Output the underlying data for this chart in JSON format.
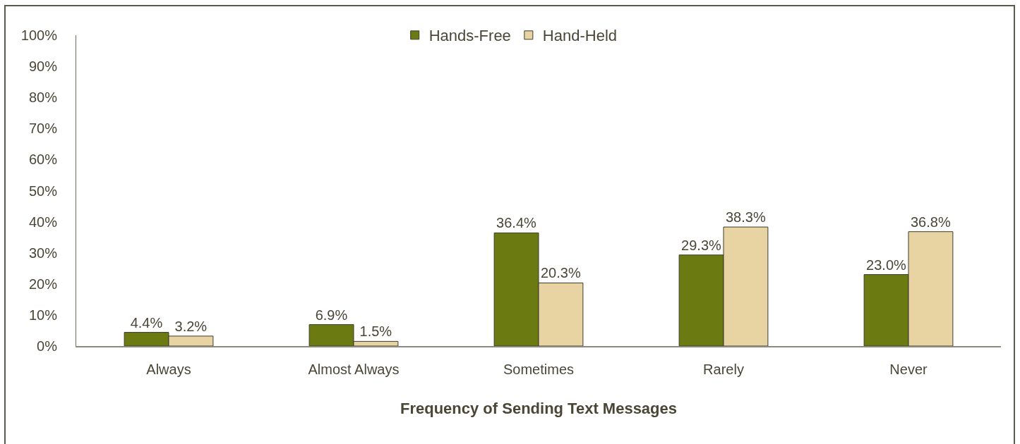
{
  "chart_data": {
    "type": "bar",
    "xlabel": "Frequency of Sending Text Messages",
    "categories": [
      "Always",
      "Almost Always",
      "Sometimes",
      "Rarely",
      "Never"
    ],
    "series": [
      {
        "name": "Hands-Free",
        "color": "#6b7b12",
        "values": [
          4.4,
          6.9,
          36.4,
          29.3,
          23.0
        ],
        "value_labels": [
          "4.4%",
          "6.9%",
          "36.4%",
          "29.3%",
          "23.0%"
        ]
      },
      {
        "name": "Hand-Held",
        "color": "#e8d4a2",
        "values": [
          3.2,
          1.5,
          20.3,
          38.3,
          36.8
        ],
        "value_labels": [
          "3.2%",
          "1.5%",
          "20.3%",
          "38.3%",
          "36.8%"
        ]
      }
    ],
    "ylim": [
      0,
      100
    ],
    "yticks": [
      {
        "value": 0,
        "label": "0%"
      },
      {
        "value": 10,
        "label": "10%"
      },
      {
        "value": 20,
        "label": "20%"
      },
      {
        "value": 30,
        "label": "30%"
      },
      {
        "value": 40,
        "label": "40%"
      },
      {
        "value": 50,
        "label": "50%"
      },
      {
        "value": 60,
        "label": "60%"
      },
      {
        "value": 70,
        "label": "70%"
      },
      {
        "value": 80,
        "label": "80%"
      },
      {
        "value": 90,
        "label": "90%"
      },
      {
        "value": 100,
        "label": "100%"
      }
    ],
    "legend": "top"
  }
}
